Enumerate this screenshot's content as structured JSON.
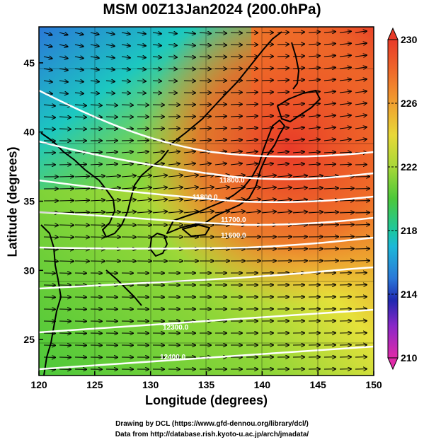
{
  "title": "MSM 00Z13Jan2024 (200.0hPa)",
  "axes": {
    "xlabel": "Longitude (degrees)",
    "ylabel": "Latitude  (degrees)",
    "xlim": [
      120,
      150
    ],
    "ylim": [
      22.4,
      47.6
    ],
    "xticks": [
      "120",
      "125",
      "130",
      "135",
      "140",
      "145",
      "150"
    ],
    "yticks": [
      "25",
      "30",
      "35",
      "40",
      "45"
    ]
  },
  "colorbar": {
    "range": [
      210,
      230
    ],
    "ticks": [
      "230",
      "226",
      "222",
      "218",
      "214",
      "210"
    ]
  },
  "contour_labels": [
    "11800.0",
    "11800.0",
    "11700.0",
    "11600.0",
    "12300.0",
    "12400.0"
  ],
  "credits": {
    "line1": "Drawing by DCL (https://www.gfd-dennou.org/library/dcl/)",
    "line2": "Data from http://database.rish.kyoto-u.ac.jp/arch/jmadata/"
  },
  "colors": {
    "warm": "#e83a28",
    "orange": "#f08a2a",
    "yellow": "#e6e13a",
    "green": "#4cc83a",
    "cyan": "#1cc8c0",
    "blue": "#2a78d8",
    "contour": "#ffffff",
    "vector": "#000000"
  }
}
